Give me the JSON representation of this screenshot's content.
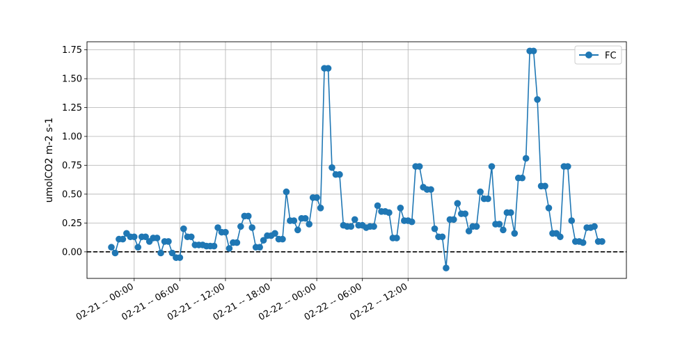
{
  "chart_data": {
    "type": "line",
    "title": "",
    "xlabel": "",
    "ylabel": "umolCO2 m-2 s-1",
    "x_start": "02-20 -- 21:00",
    "x_step_hours": 0.5,
    "x_tick_labels": [
      "02-21 -- 00:00",
      "02-21 -- 06:00",
      "02-21 -- 12:00",
      "02-21 -- 18:00",
      "02-22 -- 00:00",
      "02-22 -- 06:00",
      "02-22 -- 12:00"
    ],
    "y_tick_labels": [
      "0.00",
      "0.25",
      "0.50",
      "0.75",
      "1.00",
      "1.25",
      "1.50",
      "1.75"
    ],
    "ylim": [
      -0.23,
      1.82
    ],
    "grid": true,
    "reference_line": {
      "y": 0,
      "style": "dashed",
      "color": "#000000"
    },
    "legend_position": "top-right",
    "series": [
      {
        "name": "FC",
        "color": "#1f77b4",
        "marker": "circle",
        "values": [
          0.04,
          -0.01,
          0.11,
          0.11,
          0.16,
          0.13,
          0.13,
          0.04,
          0.13,
          0.13,
          0.09,
          0.12,
          0.12,
          -0.01,
          0.09,
          0.09,
          -0.01,
          -0.05,
          -0.05,
          0.2,
          0.13,
          0.13,
          0.06,
          0.06,
          0.06,
          0.05,
          0.05,
          0.05,
          0.21,
          0.17,
          0.17,
          0.03,
          0.08,
          0.08,
          0.22,
          0.31,
          0.31,
          0.21,
          0.04,
          0.04,
          0.1,
          0.14,
          0.14,
          0.16,
          0.11,
          0.11,
          0.52,
          0.27,
          0.27,
          0.19,
          0.29,
          0.29,
          0.24,
          0.47,
          0.47,
          0.38,
          1.59,
          1.59,
          0.73,
          0.67,
          0.67,
          0.23,
          0.22,
          0.22,
          0.28,
          0.23,
          0.23,
          0.21,
          0.22,
          0.22,
          0.4,
          0.35,
          0.35,
          0.34,
          0.12,
          0.12,
          0.38,
          0.27,
          0.27,
          0.26,
          0.74,
          0.74,
          0.56,
          0.54,
          0.54,
          0.2,
          0.13,
          0.13,
          -0.14,
          0.28,
          0.28,
          0.42,
          0.33,
          0.33,
          0.18,
          0.22,
          0.22,
          0.52,
          0.46,
          0.46,
          0.74,
          0.24,
          0.24,
          0.19,
          0.34,
          0.34,
          0.16,
          0.64,
          0.64,
          0.81,
          1.74,
          1.74,
          1.32,
          0.57,
          0.57,
          0.38,
          0.16,
          0.16,
          0.13,
          0.74,
          0.74,
          0.27,
          0.09,
          0.09,
          0.08,
          0.21,
          0.21,
          0.22,
          0.09,
          0.09
        ]
      }
    ]
  }
}
